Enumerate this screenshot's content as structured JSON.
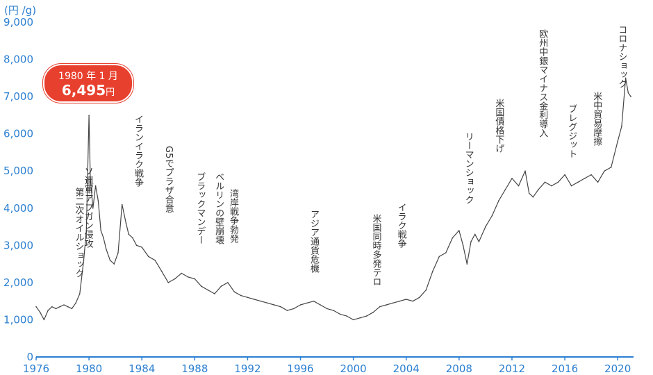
{
  "unit_label": "(円 /g)",
  "callout": {
    "date": "1980 年 1 月",
    "value": "6,495",
    "unit": "円"
  },
  "colors": {
    "axis": "#2b7fd0",
    "line": "#444444",
    "callout": "#e8402e",
    "annotation": "#333333"
  },
  "chart_data": {
    "type": "line",
    "xlim": [
      1976,
      2021.2
    ],
    "ylim": [
      0,
      9000
    ],
    "x_ticks": [
      "1976",
      "1980",
      "1984",
      "1988",
      "1992",
      "1996",
      "2000",
      "2004",
      "2008",
      "2012",
      "2016",
      "2020"
    ],
    "y_ticks": [
      "0",
      "1,000",
      "2,000",
      "3,000",
      "4,000",
      "5,000",
      "6,000",
      "7,000",
      "8,000",
      "9,000"
    ],
    "grid": false,
    "series": [
      {
        "x": [
          1976.0,
          1976.3,
          1976.6,
          1976.9,
          1977.2,
          1977.5,
          1977.8,
          1978.1,
          1978.4,
          1978.7,
          1979.0,
          1979.3,
          1979.6,
          1979.8,
          1980.0,
          1980.1,
          1980.3,
          1980.5,
          1980.7,
          1980.9,
          1981.1,
          1981.3,
          1981.6,
          1981.9,
          1982.2,
          1982.5,
          1982.8,
          1983.0,
          1983.3,
          1983.6,
          1984.0,
          1984.5,
          1985.0,
          1985.5,
          1986.0,
          1986.5,
          1987.0,
          1987.5,
          1988.0,
          1988.5,
          1989.0,
          1989.5,
          1990.0,
          1990.5,
          1991.0,
          1991.5,
          1992.0,
          1992.5,
          1993.0,
          1993.5,
          1994.0,
          1994.5,
          1995.0,
          1995.5,
          1996.0,
          1996.5,
          1997.0,
          1997.5,
          1998.0,
          1998.5,
          1999.0,
          1999.5,
          2000.0,
          2000.5,
          2001.0,
          2001.5,
          2002.0,
          2002.5,
          2003.0,
          2003.5,
          2004.0,
          2004.5,
          2005.0,
          2005.5,
          2006.0,
          2006.5,
          2007.0,
          2007.5,
          2008.0,
          2008.3,
          2008.6,
          2008.9,
          2009.2,
          2009.5,
          2010.0,
          2010.5,
          2011.0,
          2011.5,
          2012.0,
          2012.5,
          2013.0,
          2013.3,
          2013.6,
          2014.0,
          2014.5,
          2015.0,
          2015.5,
          2016.0,
          2016.5,
          2017.0,
          2017.5,
          2018.0,
          2018.5,
          2019.0,
          2019.5,
          2020.0,
          2020.3,
          2020.6,
          2020.8,
          2021.0
        ],
        "values": [
          1350,
          1200,
          1000,
          1250,
          1350,
          1300,
          1350,
          1400,
          1350,
          1300,
          1450,
          1700,
          2600,
          3400,
          6495,
          4800,
          4000,
          4600,
          4200,
          3400,
          3200,
          2900,
          2600,
          2500,
          2800,
          4100,
          3600,
          3300,
          3200,
          3000,
          2950,
          2700,
          2600,
          2300,
          2000,
          2100,
          2250,
          2150,
          2100,
          1900,
          1800,
          1700,
          1900,
          2000,
          1750,
          1650,
          1600,
          1550,
          1500,
          1450,
          1400,
          1350,
          1250,
          1300,
          1400,
          1450,
          1500,
          1400,
          1300,
          1250,
          1150,
          1100,
          1000,
          1050,
          1100,
          1200,
          1350,
          1400,
          1450,
          1500,
          1550,
          1500,
          1600,
          1800,
          2300,
          2700,
          2800,
          3200,
          3400,
          3000,
          2500,
          3100,
          3300,
          3100,
          3500,
          3800,
          4200,
          4500,
          4800,
          4600,
          5000,
          4400,
          4300,
          4500,
          4700,
          4600,
          4700,
          4900,
          4600,
          4700,
          4800,
          4900,
          4700,
          5000,
          5100,
          5800,
          6200,
          7500,
          7100,
          7000
        ],
        "x_unit": "year",
        "y_unit": "円/g"
      }
    ],
    "annotations": [
      {
        "x": 1979.2,
        "text": "第二次オイルショック"
      },
      {
        "x": 1979.9,
        "text": "ソ連軍アフガン侵攻"
      },
      {
        "x": 1983.7,
        "text": "イランイラク戦争"
      },
      {
        "x": 1986.0,
        "text": "G5でプラザ合意"
      },
      {
        "x": 1988.4,
        "text": "ブラックマンデー"
      },
      {
        "x": 1989.8,
        "text": "ベルリンの壁崩壊"
      },
      {
        "x": 1990.9,
        "text": "湾岸戦争勃発"
      },
      {
        "x": 1997.0,
        "text": "アジア通貨危機"
      },
      {
        "x": 2001.7,
        "text": "米国同時多発テロ"
      },
      {
        "x": 2003.6,
        "text": "イラク戦争"
      },
      {
        "x": 2008.7,
        "text": "リーマンショック"
      },
      {
        "x": 2011.0,
        "text": "米国債格下げ"
      },
      {
        "x": 2014.3,
        "text": "欧州中銀マイナス金利導入"
      },
      {
        "x": 2016.5,
        "text": "ブレグジット"
      },
      {
        "x": 2018.4,
        "text": "米中貿易摩擦"
      },
      {
        "x": 2020.3,
        "text": "コロナショック"
      }
    ]
  }
}
